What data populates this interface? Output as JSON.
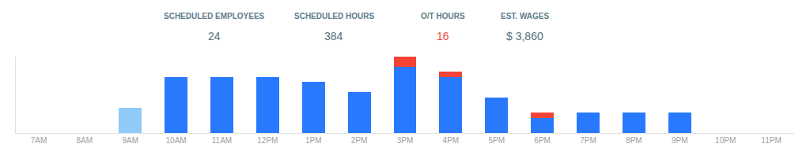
{
  "chart_data": {
    "type": "bar",
    "stacked": true,
    "categories": [
      "7AM",
      "8AM",
      "9AM",
      "10AM",
      "11AM",
      "12PM",
      "1PM",
      "2PM",
      "3PM",
      "4PM",
      "5PM",
      "6PM",
      "7PM",
      "8PM",
      "9PM",
      "10PM",
      "11PM"
    ],
    "series": [
      {
        "colors": [
          "#2979FF",
          "#2979FF",
          "#90CAF9",
          "#2979FF",
          "#2979FF",
          "#2979FF",
          "#2979FF",
          "#2979FF",
          "#2979FF",
          "#2979FF",
          "#2979FF",
          "#2979FF",
          "#2979FF",
          "#2979FF",
          "#2979FF",
          "#2979FF",
          "#2979FF"
        ],
        "values": [
          0,
          0,
          5,
          11,
          11,
          11,
          10,
          8,
          13,
          11,
          7,
          3,
          4,
          4,
          4,
          0,
          0
        ]
      },
      {
        "color": "#F44336",
        "values": [
          0,
          0,
          0,
          0,
          0,
          0,
          0,
          0,
          2,
          1,
          0,
          1,
          0,
          0,
          0,
          0,
          0
        ]
      }
    ],
    "ylim": [
      0,
      15
    ],
    "grid": false,
    "tick_labels": "x",
    "annotations": [
      {
        "text": "SCHEDULED EMPLOYEES",
        "color": "#607D8B"
      },
      {
        "text": "24",
        "color": "#546E7A"
      },
      {
        "text": "SCHEDULED HOURS",
        "color": "#607D8B"
      },
      {
        "text": "384",
        "color": "#546E7A"
      },
      {
        "text": "O/T HOURS",
        "color": "#607D8B"
      },
      {
        "text": "16",
        "color": "#F44336"
      },
      {
        "text": "EST. WAGES",
        "color": "#607D8B"
      },
      {
        "text": "$ 3,860",
        "color": "#546E7A"
      }
    ]
  }
}
